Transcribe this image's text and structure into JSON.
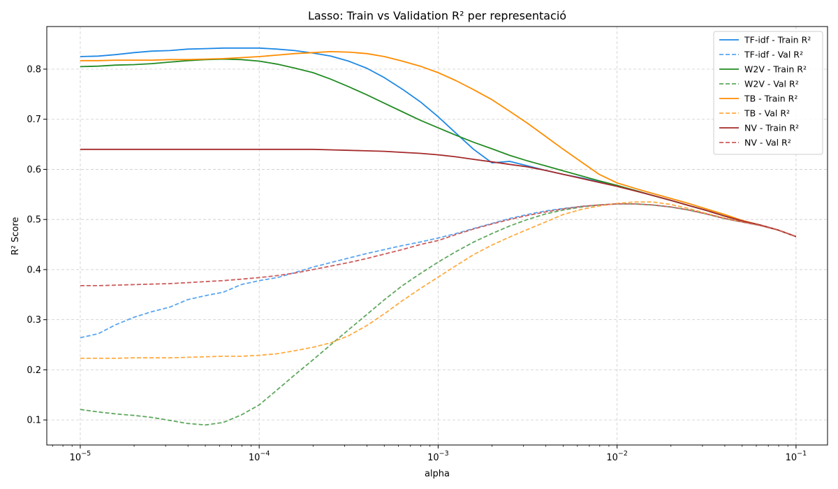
{
  "chart_data": {
    "type": "line",
    "title": "Lasso: Train vs Validation R² per representació",
    "xlabel": "alpha",
    "ylabel": "R² Score",
    "xscale": "log",
    "xlim": [
      6.5e-06,
      0.15
    ],
    "ylim": [
      0.05,
      0.885
    ],
    "xticks": [
      {
        "value": 1e-05,
        "base": "10",
        "exp": "−5"
      },
      {
        "value": 0.0001,
        "base": "10",
        "exp": "−4"
      },
      {
        "value": 0.001,
        "base": "10",
        "exp": "−3"
      },
      {
        "value": 0.01,
        "base": "10",
        "exp": "−2"
      },
      {
        "value": 0.1,
        "base": "10",
        "exp": "−1"
      }
    ],
    "yticks": [
      {
        "value": 0.1,
        "label": "0.1"
      },
      {
        "value": 0.2,
        "label": "0.2"
      },
      {
        "value": 0.3,
        "label": "0.3"
      },
      {
        "value": 0.4,
        "label": "0.4"
      },
      {
        "value": 0.5,
        "label": "0.5"
      },
      {
        "value": 0.6,
        "label": "0.6"
      },
      {
        "value": 0.7,
        "label": "0.7"
      },
      {
        "value": 0.8,
        "label": "0.8"
      }
    ],
    "grid": true,
    "legend_position": "top-right",
    "x": [
      1e-05,
      1.26e-05,
      1.58e-05,
      2e-05,
      2.51e-05,
      3.16e-05,
      3.98e-05,
      5.01e-05,
      6.31e-05,
      7.94e-05,
      0.0001,
      0.000126,
      0.000158,
      0.0002,
      0.000251,
      0.000316,
      0.000398,
      0.000501,
      0.000631,
      0.000794,
      0.001,
      0.00126,
      0.00158,
      0.002,
      0.00251,
      0.00316,
      0.00398,
      0.00501,
      0.00631,
      0.00794,
      0.01,
      0.0126,
      0.0158,
      0.02,
      0.0251,
      0.0316,
      0.0398,
      0.0501,
      0.0631,
      0.0794,
      0.1
    ],
    "series": [
      {
        "name": "TF-idf - Train R²",
        "color": "#1e88e5",
        "dashed": false,
        "values": [
          0.825,
          0.826,
          0.829,
          0.833,
          0.836,
          0.837,
          0.84,
          0.841,
          0.842,
          0.842,
          0.842,
          0.84,
          0.837,
          0.832,
          0.826,
          0.816,
          0.802,
          0.783,
          0.76,
          0.735,
          0.705,
          0.672,
          0.64,
          0.613,
          0.616,
          0.607,
          0.598,
          0.59,
          0.583,
          0.575,
          0.567,
          0.558,
          0.548,
          0.538,
          0.528,
          0.518,
          0.507,
          0.497,
          0.489,
          0.479,
          0.466
        ]
      },
      {
        "name": "TF-idf - Val R²",
        "color": "#5aa6f0",
        "dashed": true,
        "values": [
          0.264,
          0.272,
          0.29,
          0.305,
          0.316,
          0.325,
          0.34,
          0.348,
          0.355,
          0.37,
          0.378,
          0.384,
          0.394,
          0.405,
          0.414,
          0.423,
          0.432,
          0.44,
          0.448,
          0.455,
          0.463,
          0.472,
          0.482,
          0.492,
          0.502,
          0.51,
          0.517,
          0.522,
          0.526,
          0.529,
          0.531,
          0.531,
          0.529,
          0.525,
          0.519,
          0.511,
          0.502,
          0.495,
          0.488,
          0.479,
          0.466
        ]
      },
      {
        "name": "W2V - Train R²",
        "color": "#228b22",
        "dashed": false,
        "values": [
          0.805,
          0.806,
          0.808,
          0.809,
          0.811,
          0.814,
          0.817,
          0.819,
          0.82,
          0.819,
          0.816,
          0.81,
          0.802,
          0.793,
          0.78,
          0.765,
          0.749,
          0.732,
          0.715,
          0.698,
          0.683,
          0.668,
          0.654,
          0.641,
          0.628,
          0.617,
          0.607,
          0.597,
          0.587,
          0.577,
          0.568,
          0.558,
          0.548,
          0.538,
          0.528,
          0.518,
          0.507,
          0.497,
          0.489,
          0.479,
          0.466
        ]
      },
      {
        "name": "W2V - Val R²",
        "color": "#5fa85f",
        "dashed": true,
        "values": [
          0.121,
          0.116,
          0.112,
          0.109,
          0.105,
          0.099,
          0.093,
          0.09,
          0.095,
          0.11,
          0.13,
          0.16,
          0.19,
          0.22,
          0.25,
          0.28,
          0.31,
          0.34,
          0.368,
          0.392,
          0.415,
          0.436,
          0.455,
          0.472,
          0.487,
          0.5,
          0.511,
          0.519,
          0.525,
          0.529,
          0.531,
          0.531,
          0.529,
          0.525,
          0.519,
          0.511,
          0.502,
          0.495,
          0.488,
          0.479,
          0.466
        ]
      },
      {
        "name": "TB - Train R²",
        "color": "#ff8c00",
        "dashed": false,
        "values": [
          0.817,
          0.817,
          0.818,
          0.818,
          0.818,
          0.819,
          0.819,
          0.82,
          0.821,
          0.823,
          0.825,
          0.828,
          0.831,
          0.833,
          0.835,
          0.834,
          0.831,
          0.825,
          0.816,
          0.806,
          0.793,
          0.777,
          0.759,
          0.739,
          0.716,
          0.692,
          0.666,
          0.64,
          0.615,
          0.59,
          0.573,
          0.562,
          0.552,
          0.542,
          0.532,
          0.521,
          0.51,
          0.498,
          0.489,
          0.479,
          0.466
        ]
      },
      {
        "name": "TB - Val R²",
        "color": "#ffab40",
        "dashed": true,
        "values": [
          0.223,
          0.223,
          0.223,
          0.224,
          0.224,
          0.224,
          0.225,
          0.226,
          0.227,
          0.227,
          0.229,
          0.232,
          0.238,
          0.245,
          0.254,
          0.268,
          0.288,
          0.312,
          0.338,
          0.362,
          0.385,
          0.408,
          0.43,
          0.449,
          0.465,
          0.48,
          0.495,
          0.51,
          0.52,
          0.527,
          0.532,
          0.535,
          0.535,
          0.53,
          0.522,
          0.512,
          0.503,
          0.496,
          0.488,
          0.479,
          0.466
        ]
      },
      {
        "name": "NV - Train R²",
        "color": "#a52a2a",
        "dashed": false,
        "values": [
          0.64,
          0.64,
          0.64,
          0.64,
          0.64,
          0.64,
          0.64,
          0.64,
          0.64,
          0.64,
          0.64,
          0.64,
          0.64,
          0.64,
          0.639,
          0.638,
          0.637,
          0.636,
          0.634,
          0.632,
          0.629,
          0.625,
          0.62,
          0.615,
          0.61,
          0.605,
          0.598,
          0.59,
          0.582,
          0.574,
          0.566,
          0.557,
          0.548,
          0.538,
          0.528,
          0.518,
          0.507,
          0.497,
          0.489,
          0.479,
          0.466
        ]
      },
      {
        "name": "NV - Val R²",
        "color": "#cd5c5c",
        "dashed": true,
        "values": [
          0.368,
          0.368,
          0.369,
          0.37,
          0.371,
          0.372,
          0.374,
          0.376,
          0.378,
          0.381,
          0.384,
          0.388,
          0.393,
          0.4,
          0.407,
          0.414,
          0.422,
          0.431,
          0.44,
          0.45,
          0.458,
          0.47,
          0.481,
          0.491,
          0.5,
          0.508,
          0.515,
          0.521,
          0.526,
          0.529,
          0.531,
          0.531,
          0.529,
          0.525,
          0.519,
          0.511,
          0.502,
          0.495,
          0.488,
          0.479,
          0.466
        ]
      }
    ]
  }
}
